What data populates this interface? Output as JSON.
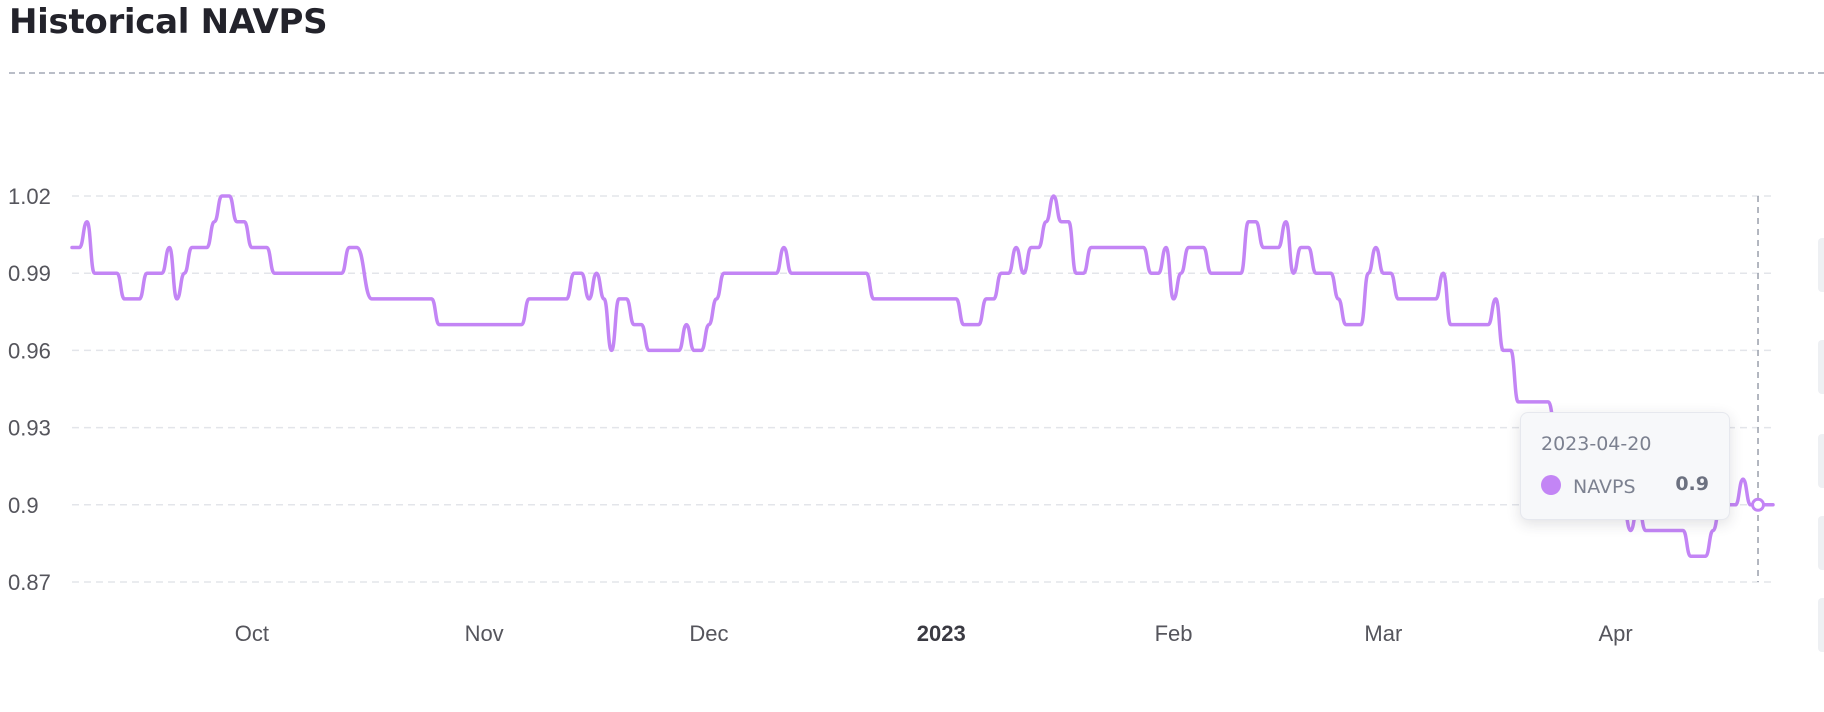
{
  "header": {
    "title": "Historical NAVPS"
  },
  "tooltip": {
    "date": "2023-04-20",
    "series_name": "NAVPS",
    "value": "0.9"
  },
  "colors": {
    "series": "#c385f5",
    "grid": "#e3e5ea",
    "tick_text": "#55555c",
    "crosshair": "#9aa0ab"
  },
  "chart_data": {
    "type": "line",
    "title": "Historical NAVPS",
    "xlabel": "",
    "ylabel": "",
    "x_range": [
      "2022-09-07",
      "2023-04-22"
    ],
    "ylim": [
      0.87,
      1.02
    ],
    "y_ticks": [
      "0.87",
      "0.9",
      "0.93",
      "0.96",
      "0.99",
      "1.02"
    ],
    "x_ticks": [
      {
        "label": "Oct",
        "date": "2022-10-01",
        "bold": false
      },
      {
        "label": "Nov",
        "date": "2022-11-01",
        "bold": false
      },
      {
        "label": "Dec",
        "date": "2022-12-01",
        "bold": false
      },
      {
        "label": "2023",
        "date": "2023-01-01",
        "bold": true
      },
      {
        "label": "Feb",
        "date": "2023-02-01",
        "bold": false
      },
      {
        "label": "Mar",
        "date": "2023-03-01",
        "bold": false
      },
      {
        "label": "Apr",
        "date": "2023-04-01",
        "bold": false
      }
    ],
    "grid": true,
    "highlight": {
      "date": "2023-04-20",
      "value": 0.9
    },
    "series": [
      {
        "name": "NAVPS",
        "points": [
          [
            "2022-09-07",
            1.0
          ],
          [
            "2022-09-08",
            1.0
          ],
          [
            "2022-09-09",
            1.01
          ],
          [
            "2022-09-10",
            0.99
          ],
          [
            "2022-09-12",
            0.99
          ],
          [
            "2022-09-13",
            0.99
          ],
          [
            "2022-09-14",
            0.98
          ],
          [
            "2022-09-16",
            0.98
          ],
          [
            "2022-09-17",
            0.99
          ],
          [
            "2022-09-19",
            0.99
          ],
          [
            "2022-09-20",
            1.0
          ],
          [
            "2022-09-21",
            0.98
          ],
          [
            "2022-09-22",
            0.99
          ],
          [
            "2022-09-23",
            1.0
          ],
          [
            "2022-09-25",
            1.0
          ],
          [
            "2022-09-26",
            1.01
          ],
          [
            "2022-09-27",
            1.02
          ],
          [
            "2022-09-28",
            1.02
          ],
          [
            "2022-09-29",
            1.01
          ],
          [
            "2022-09-30",
            1.01
          ],
          [
            "2022-10-01",
            1.0
          ],
          [
            "2022-10-03",
            1.0
          ],
          [
            "2022-10-04",
            0.99
          ],
          [
            "2022-10-06",
            0.99
          ],
          [
            "2022-10-10",
            0.99
          ],
          [
            "2022-10-13",
            0.99
          ],
          [
            "2022-10-14",
            1.0
          ],
          [
            "2022-10-15",
            1.0
          ],
          [
            "2022-10-17",
            0.98
          ],
          [
            "2022-10-20",
            0.98
          ],
          [
            "2022-10-25",
            0.98
          ],
          [
            "2022-10-26",
            0.97
          ],
          [
            "2022-11-02",
            0.97
          ],
          [
            "2022-11-06",
            0.97
          ],
          [
            "2022-11-07",
            0.98
          ],
          [
            "2022-11-10",
            0.98
          ],
          [
            "2022-11-12",
            0.98
          ],
          [
            "2022-11-13",
            0.99
          ],
          [
            "2022-11-14",
            0.99
          ],
          [
            "2022-11-15",
            0.98
          ],
          [
            "2022-11-16",
            0.99
          ],
          [
            "2022-11-17",
            0.98
          ],
          [
            "2022-11-18",
            0.96
          ],
          [
            "2022-11-19",
            0.98
          ],
          [
            "2022-11-20",
            0.98
          ],
          [
            "2022-11-21",
            0.97
          ],
          [
            "2022-11-22",
            0.97
          ],
          [
            "2022-11-23",
            0.96
          ],
          [
            "2022-11-25",
            0.96
          ],
          [
            "2022-11-27",
            0.96
          ],
          [
            "2022-11-28",
            0.97
          ],
          [
            "2022-11-29",
            0.96
          ],
          [
            "2022-11-30",
            0.96
          ],
          [
            "2022-12-01",
            0.97
          ],
          [
            "2022-12-02",
            0.98
          ],
          [
            "2022-12-03",
            0.99
          ],
          [
            "2022-12-05",
            0.99
          ],
          [
            "2022-12-10",
            0.99
          ],
          [
            "2022-12-11",
            1.0
          ],
          [
            "2022-12-12",
            0.99
          ],
          [
            "2022-12-16",
            0.99
          ],
          [
            "2022-12-22",
            0.99
          ],
          [
            "2022-12-23",
            0.98
          ],
          [
            "2022-12-27",
            0.98
          ],
          [
            "2023-01-02",
            0.98
          ],
          [
            "2023-01-03",
            0.98
          ],
          [
            "2023-01-04",
            0.97
          ],
          [
            "2023-01-06",
            0.97
          ],
          [
            "2023-01-07",
            0.98
          ],
          [
            "2023-01-08",
            0.98
          ],
          [
            "2023-01-09",
            0.99
          ],
          [
            "2023-01-10",
            0.99
          ],
          [
            "2023-01-11",
            1.0
          ],
          [
            "2023-01-12",
            0.99
          ],
          [
            "2023-01-13",
            1.0
          ],
          [
            "2023-01-14",
            1.0
          ],
          [
            "2023-01-15",
            1.01
          ],
          [
            "2023-01-16",
            1.02
          ],
          [
            "2023-01-17",
            1.01
          ],
          [
            "2023-01-18",
            1.01
          ],
          [
            "2023-01-19",
            0.99
          ],
          [
            "2023-01-20",
            0.99
          ],
          [
            "2023-01-21",
            1.0
          ],
          [
            "2023-01-25",
            1.0
          ],
          [
            "2023-01-28",
            1.0
          ],
          [
            "2023-01-29",
            0.99
          ],
          [
            "2023-01-30",
            0.99
          ],
          [
            "2023-01-31",
            1.0
          ],
          [
            "2023-02-01",
            0.98
          ],
          [
            "2023-02-02",
            0.99
          ],
          [
            "2023-02-03",
            1.0
          ],
          [
            "2023-02-05",
            1.0
          ],
          [
            "2023-02-06",
            0.99
          ],
          [
            "2023-02-10",
            0.99
          ],
          [
            "2023-02-11",
            1.01
          ],
          [
            "2023-02-12",
            1.01
          ],
          [
            "2023-02-13",
            1.0
          ],
          [
            "2023-02-15",
            1.0
          ],
          [
            "2023-02-16",
            1.01
          ],
          [
            "2023-02-17",
            0.99
          ],
          [
            "2023-02-18",
            1.0
          ],
          [
            "2023-02-19",
            1.0
          ],
          [
            "2023-02-20",
            0.99
          ],
          [
            "2023-02-22",
            0.99
          ],
          [
            "2023-02-23",
            0.98
          ],
          [
            "2023-02-24",
            0.97
          ],
          [
            "2023-02-26",
            0.97
          ],
          [
            "2023-02-27",
            0.99
          ],
          [
            "2023-02-28",
            1.0
          ],
          [
            "2023-03-01",
            0.99
          ],
          [
            "2023-03-02",
            0.99
          ],
          [
            "2023-03-03",
            0.98
          ],
          [
            "2023-03-05",
            0.98
          ],
          [
            "2023-03-08",
            0.98
          ],
          [
            "2023-03-09",
            0.99
          ],
          [
            "2023-03-10",
            0.97
          ],
          [
            "2023-03-12",
            0.97
          ],
          [
            "2023-03-15",
            0.97
          ],
          [
            "2023-03-16",
            0.98
          ],
          [
            "2023-03-17",
            0.96
          ],
          [
            "2023-03-18",
            0.96
          ],
          [
            "2023-03-19",
            0.94
          ],
          [
            "2023-03-21",
            0.94
          ],
          [
            "2023-03-23",
            0.94
          ],
          [
            "2023-03-24",
            0.93
          ],
          [
            "2023-03-27",
            0.93
          ],
          [
            "2023-03-28",
            0.92
          ],
          [
            "2023-03-31",
            0.91
          ],
          [
            "2023-04-02",
            0.9
          ],
          [
            "2023-04-03",
            0.89
          ],
          [
            "2023-04-04",
            0.9
          ],
          [
            "2023-04-05",
            0.89
          ],
          [
            "2023-04-07",
            0.89
          ],
          [
            "2023-04-10",
            0.89
          ],
          [
            "2023-04-11",
            0.88
          ],
          [
            "2023-04-13",
            0.88
          ],
          [
            "2023-04-14",
            0.89
          ],
          [
            "2023-04-15",
            0.9
          ],
          [
            "2023-04-17",
            0.9
          ],
          [
            "2023-04-18",
            0.91
          ],
          [
            "2023-04-19",
            0.9
          ],
          [
            "2023-04-20",
            0.9
          ],
          [
            "2023-04-22",
            0.9
          ]
        ]
      }
    ]
  }
}
